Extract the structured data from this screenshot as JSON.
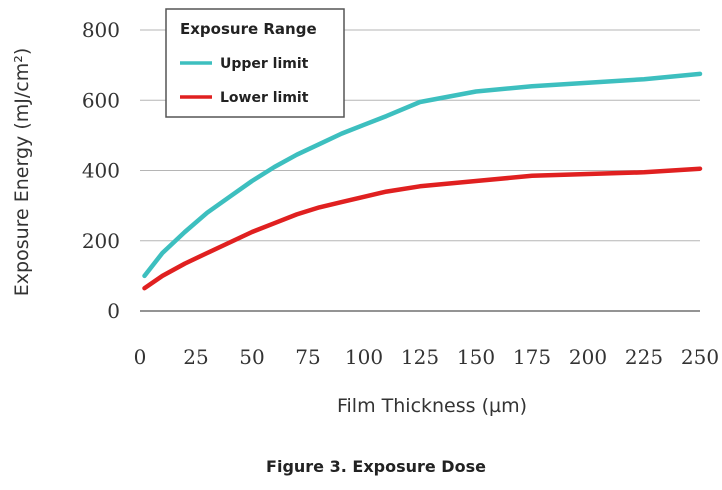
{
  "chart_data": {
    "type": "line",
    "caption": "Figure 3. Exposure Dose",
    "xlabel": "Film Thickness (µm)",
    "ylabel": "Exposure Energy (mJ/cm²)",
    "xlim": [
      0,
      250
    ],
    "ylim": [
      0,
      800
    ],
    "xticks": [
      0,
      25,
      50,
      75,
      100,
      125,
      150,
      175,
      200,
      225,
      250
    ],
    "yticks": [
      0,
      200,
      400,
      600,
      800
    ],
    "grid": "horizontal",
    "legend": {
      "title": "Exposure Range",
      "placement": "top-left"
    },
    "series": [
      {
        "name": "Upper limit",
        "color": "#3dbfbf",
        "x": [
          2,
          10,
          20,
          30,
          40,
          50,
          60,
          70,
          80,
          90,
          100,
          110,
          125,
          150,
          175,
          200,
          225,
          250
        ],
        "y": [
          100,
          165,
          225,
          280,
          325,
          370,
          410,
          445,
          475,
          505,
          530,
          555,
          595,
          625,
          640,
          650,
          660,
          675
        ]
      },
      {
        "name": "Lower limit",
        "color": "#e02020",
        "x": [
          2,
          10,
          20,
          30,
          40,
          50,
          60,
          70,
          80,
          90,
          100,
          110,
          125,
          150,
          175,
          200,
          225,
          250
        ],
        "y": [
          65,
          100,
          135,
          165,
          195,
          225,
          250,
          275,
          295,
          310,
          325,
          340,
          355,
          370,
          385,
          390,
          395,
          405
        ]
      }
    ]
  }
}
